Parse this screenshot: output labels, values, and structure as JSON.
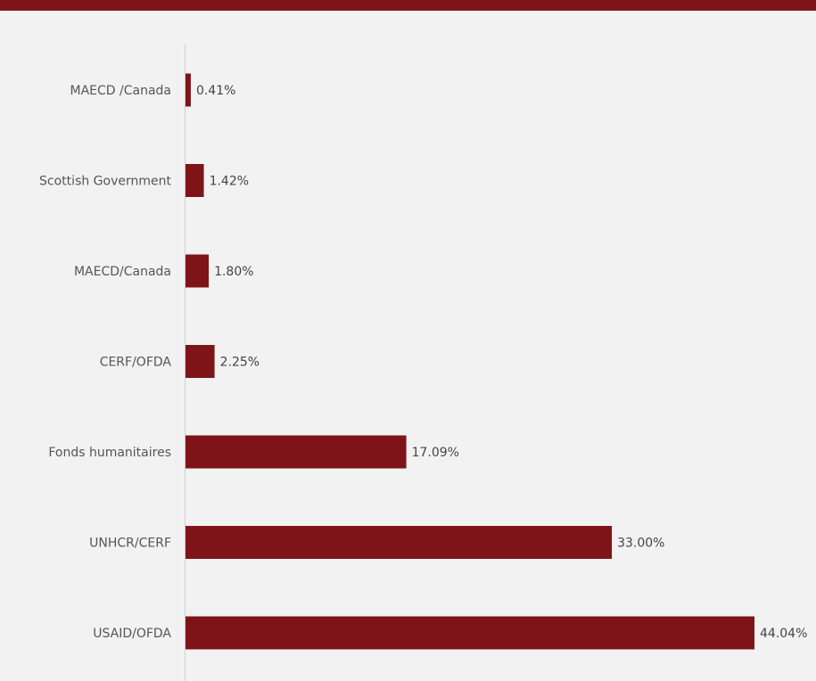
{
  "colors": {
    "background": "#f2f2f2",
    "top_band": "#7e1418",
    "bar": "#7e1418",
    "axis_line": "#d0d0d0",
    "label_text": "#555555"
  },
  "chart_data": {
    "type": "bar",
    "orientation": "horizontal",
    "categories": [
      "MAECD /Canada",
      "Scottish Government",
      "MAECD/Canada",
      "CERF/OFDA",
      "Fonds humanitaires",
      "UNHCR/CERF",
      "USAID/OFDA"
    ],
    "values": [
      0.41,
      1.42,
      1.8,
      2.25,
      17.09,
      33.0,
      44.04
    ],
    "value_labels": [
      "0.41%",
      "1.42%",
      "1.80%",
      "2.25%",
      "17.09%",
      "33.00%",
      "44.04%"
    ],
    "title": "",
    "xlabel": "",
    "ylabel": "",
    "xlim": [
      0,
      44.04
    ],
    "grid": false,
    "legend": "none"
  }
}
